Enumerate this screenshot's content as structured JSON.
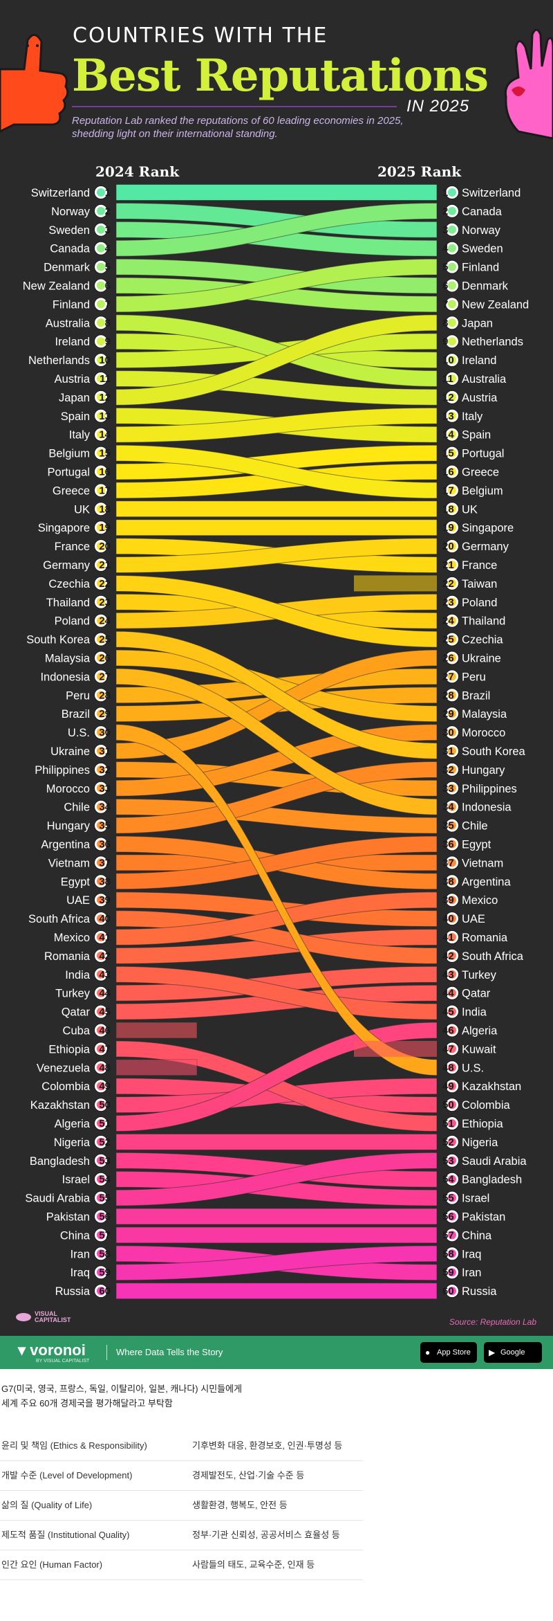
{
  "header": {
    "line1": "COUNTRIES WITH THE",
    "line2": "Best Reputations",
    "line3": "IN 2025",
    "description": "Reputation Lab ranked the reputations of 60 leading economies in 2025, shedding light on their international standing."
  },
  "colors": {
    "background": "#2a2a2a",
    "title_accent": "#d4f03a",
    "gradient": [
      "#53e8a3",
      "#c8f23c",
      "#ffe812",
      "#ffcf14",
      "#ffa31a",
      "#ff7a2a",
      "#ff5a5a",
      "#ff3f8a",
      "#f733b6"
    ],
    "footer_bar": "#2f9a66"
  },
  "chart_data": {
    "type": "slope",
    "title": "Best Reputations",
    "left_label": "2024 Rank",
    "right_label": "2025 Rank",
    "rank_2024": [
      "Switzerland",
      "Norway",
      "Sweden",
      "Canada",
      "Denmark",
      "New Zealand",
      "Finland",
      "Australia",
      "Ireland",
      "Netherlands",
      "Austria",
      "Japan",
      "Spain",
      "Italy",
      "Belgium",
      "Portugal",
      "Greece",
      "UK",
      "Singapore",
      "France",
      "Germany",
      "Czechia",
      "Thailand",
      "Poland",
      "South Korea",
      "Malaysia",
      "Indonesia",
      "Peru",
      "Brazil",
      "U.S.",
      "Ukraine",
      "Philippines",
      "Morocco",
      "Chile",
      "Hungary",
      "Argentina",
      "Vietnam",
      "Egypt",
      "UAE",
      "South Africa",
      "Mexico",
      "Romania",
      "India",
      "Turkey",
      "Qatar",
      "Cuba",
      "Ethiopia",
      "Venezuela",
      "Colombia",
      "Kazakhstan",
      "Algeria",
      "Nigeria",
      "Bangladesh",
      "Israel",
      "Saudi Arabia",
      "Pakistan",
      "China",
      "Iran",
      "Iraq",
      "Russia"
    ],
    "rank_2025": [
      "Switzerland",
      "Canada",
      "Norway",
      "Sweden",
      "Finland",
      "Denmark",
      "New Zealand",
      "Japan",
      "Netherlands",
      "Ireland",
      "Australia",
      "Austria",
      "Italy",
      "Spain",
      "Portugal",
      "Greece",
      "Belgium",
      "UK",
      "Singapore",
      "Germany",
      "France",
      "Taiwan",
      "Poland",
      "Thailand",
      "Czechia",
      "Ukraine",
      "Peru",
      "Brazil",
      "Malaysia",
      "Morocco",
      "South Korea",
      "Hungary",
      "Philippines",
      "Indonesia",
      "Chile",
      "Egypt",
      "Vietnam",
      "Argentina",
      "Mexico",
      "UAE",
      "Romania",
      "South Africa",
      "Turkey",
      "Qatar",
      "India",
      "Algeria",
      "Kuwait",
      "U.S.",
      "Kazakhstan",
      "Colombia",
      "Ethiopia",
      "Nigeria",
      "Saudi Arabia",
      "Bangladesh",
      "Israel",
      "Pakistan",
      "China",
      "Iraq",
      "Iran",
      "Russia"
    ],
    "source": "Source: Reputation Lab"
  },
  "brand": {
    "logo_line1": "VISUAL",
    "logo_line2": "CAPITALIST",
    "logo_icon": "hands-icon"
  },
  "footer": {
    "logo": "voronoi",
    "logo_sub": "BY VISUAL CAPITALIST",
    "tagline": "Where Data Tells the Story",
    "app_store": "App Store",
    "google_play": "Google Play"
  },
  "notes": {
    "line1": "G7(미국, 영국, 프랑스, 독일, 이탈리아, 일본, 캐나다) 시민들에게",
    "line2": "세계 주요 60개 경제국을 평가해달라고 부탁함",
    "criteria": [
      {
        "name": "윤리 및 책임 (Ethics & Responsibility)",
        "desc": "기후변화 대응, 환경보호, 인권·투명성 등"
      },
      {
        "name": "개발 수준 (Level of Development)",
        "desc": "경제발전도, 산업·기술 수준 등"
      },
      {
        "name": "삶의 질 (Quality of Life)",
        "desc": "생활환경, 행복도, 안전 등"
      },
      {
        "name": "제도적 품질 (Institutional Quality)",
        "desc": "정부·기관 신뢰성, 공공서비스 효율성 등"
      },
      {
        "name": "인간 요인 (Human Factor)",
        "desc": "사람들의 태도, 교육수준, 인재 등"
      }
    ]
  }
}
